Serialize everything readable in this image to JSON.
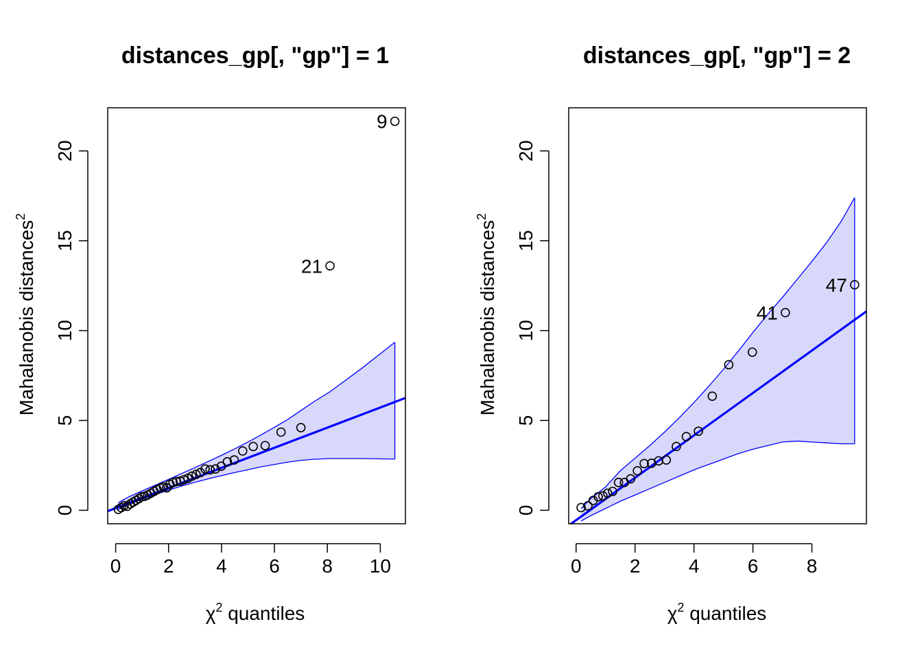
{
  "colors": {
    "line": "#0000ff",
    "band_fill": "#d8d8fa",
    "band_stroke": "#0000ff",
    "points": "#000000"
  },
  "chart_data": [
    {
      "type": "scatter",
      "title": "distances_gp[, \"gp\"] = 1",
      "xlabel": {
        "greek": "χ",
        "sup": "2",
        "rest": " quantiles"
      },
      "ylabel": {
        "main": "Mahalanobis distances",
        "sup": "2"
      },
      "xlim": [
        -0.3,
        10.95
      ],
      "ylim": [
        -0.75,
        22.4
      ],
      "xticks": [
        0,
        2,
        4,
        6,
        8,
        10
      ],
      "yticks": [
        0,
        5,
        10,
        15,
        20
      ],
      "grid": false,
      "points": [
        [
          0.1,
          0.05
        ],
        [
          0.21,
          0.15
        ],
        [
          0.32,
          0.25
        ],
        [
          0.44,
          0.22
        ],
        [
          0.55,
          0.35
        ],
        [
          0.66,
          0.45
        ],
        [
          0.77,
          0.55
        ],
        [
          0.88,
          0.65
        ],
        [
          0.99,
          0.75
        ],
        [
          1.1,
          0.78
        ],
        [
          1.21,
          0.85
        ],
        [
          1.33,
          0.95
        ],
        [
          1.45,
          1.05
        ],
        [
          1.57,
          1.15
        ],
        [
          1.69,
          1.25
        ],
        [
          1.81,
          1.3
        ],
        [
          1.93,
          1.25
        ],
        [
          2.05,
          1.45
        ],
        [
          2.17,
          1.55
        ],
        [
          2.3,
          1.6
        ],
        [
          2.44,
          1.62
        ],
        [
          2.58,
          1.7
        ],
        [
          2.73,
          1.78
        ],
        [
          2.88,
          1.9
        ],
        [
          3.04,
          2.0
        ],
        [
          3.2,
          2.1
        ],
        [
          3.38,
          2.3
        ],
        [
          3.57,
          2.25
        ],
        [
          3.77,
          2.3
        ],
        [
          3.99,
          2.45
        ],
        [
          4.22,
          2.7
        ],
        [
          4.48,
          2.8
        ],
        [
          4.8,
          3.3
        ],
        [
          5.2,
          3.55
        ],
        [
          5.65,
          3.6
        ],
        [
          6.25,
          4.35
        ],
        [
          7.0,
          4.6
        ],
        [
          8.1,
          13.6
        ],
        [
          10.55,
          21.65
        ]
      ],
      "labels": [
        {
          "text": "21",
          "x": 8.1,
          "y": 13.6
        },
        {
          "text": "9",
          "x": 10.55,
          "y": 21.65
        }
      ],
      "reference_line": {
        "intercept": 0.12,
        "slope": 0.56
      },
      "envelope": {
        "x": [
          0.1,
          0.5,
          1.0,
          1.5,
          2.0,
          2.5,
          3.0,
          3.5,
          4.0,
          4.5,
          5.0,
          5.5,
          6.0,
          6.5,
          7.0,
          7.5,
          8.1,
          9.3,
          10.55,
          10.55
        ],
        "upper": [
          0.42,
          0.75,
          1.08,
          1.4,
          1.72,
          2.05,
          2.38,
          2.72,
          3.06,
          3.42,
          3.8,
          4.2,
          4.62,
          5.05,
          5.55,
          6.05,
          6.6,
          7.9,
          9.35,
          9.35
        ],
        "lower": [
          0.05,
          0.33,
          0.62,
          0.88,
          1.12,
          1.35,
          1.56,
          1.75,
          1.93,
          2.1,
          2.26,
          2.42,
          2.55,
          2.68,
          2.78,
          2.84,
          2.88,
          2.88,
          2.85,
          2.85
        ]
      }
    },
    {
      "type": "scatter",
      "title": "distances_gp[, \"gp\"] = 2",
      "xlabel": {
        "greek": "χ",
        "sup": "2",
        "rest": " quantiles"
      },
      "ylabel": {
        "main": "Mahalanobis distances",
        "sup": "2"
      },
      "xlim": [
        -0.25,
        9.85
      ],
      "ylim": [
        -0.75,
        22.4
      ],
      "xticks": [
        0,
        2,
        4,
        6,
        8
      ],
      "yticks": [
        0,
        5,
        10,
        15,
        20
      ],
      "grid": false,
      "points": [
        [
          0.17,
          0.15
        ],
        [
          0.4,
          0.25
        ],
        [
          0.58,
          0.55
        ],
        [
          0.75,
          0.75
        ],
        [
          0.91,
          0.8
        ],
        [
          1.07,
          0.95
        ],
        [
          1.24,
          1.05
        ],
        [
          1.44,
          1.55
        ],
        [
          1.64,
          1.55
        ],
        [
          1.85,
          1.75
        ],
        [
          2.08,
          2.2
        ],
        [
          2.31,
          2.6
        ],
        [
          2.56,
          2.62
        ],
        [
          2.8,
          2.75
        ],
        [
          3.06,
          2.8
        ],
        [
          3.4,
          3.55
        ],
        [
          3.74,
          4.1
        ],
        [
          4.15,
          4.4
        ],
        [
          4.62,
          6.35
        ],
        [
          5.18,
          8.1
        ],
        [
          5.98,
          8.8
        ],
        [
          7.1,
          11.0
        ],
        [
          9.45,
          12.55
        ]
      ],
      "labels": [
        {
          "text": "41",
          "x": 7.1,
          "y": 11.0
        },
        {
          "text": "47",
          "x": 9.45,
          "y": 12.55
        }
      ],
      "reference_line": {
        "intercept": -0.55,
        "slope": 1.18
      },
      "envelope": {
        "x": [
          0.17,
          0.5,
          1.0,
          1.5,
          2.0,
          2.5,
          3.0,
          3.5,
          4.0,
          4.5,
          5.0,
          5.5,
          6.0,
          6.5,
          7.0,
          7.5,
          8.0,
          8.5,
          9.0,
          9.45,
          9.45
        ],
        "upper": [
          0.1,
          0.65,
          1.3,
          2.2,
          2.9,
          3.6,
          4.35,
          5.15,
          6.0,
          6.9,
          7.85,
          8.85,
          9.9,
          10.9,
          11.85,
          12.85,
          13.85,
          14.9,
          16.1,
          17.4,
          17.4
        ],
        "lower": [
          -0.6,
          -0.3,
          0.1,
          0.5,
          0.85,
          1.2,
          1.55,
          1.9,
          2.25,
          2.55,
          2.85,
          3.15,
          3.4,
          3.6,
          3.8,
          3.85,
          3.8,
          3.75,
          3.7,
          3.7,
          3.7
        ]
      }
    }
  ]
}
